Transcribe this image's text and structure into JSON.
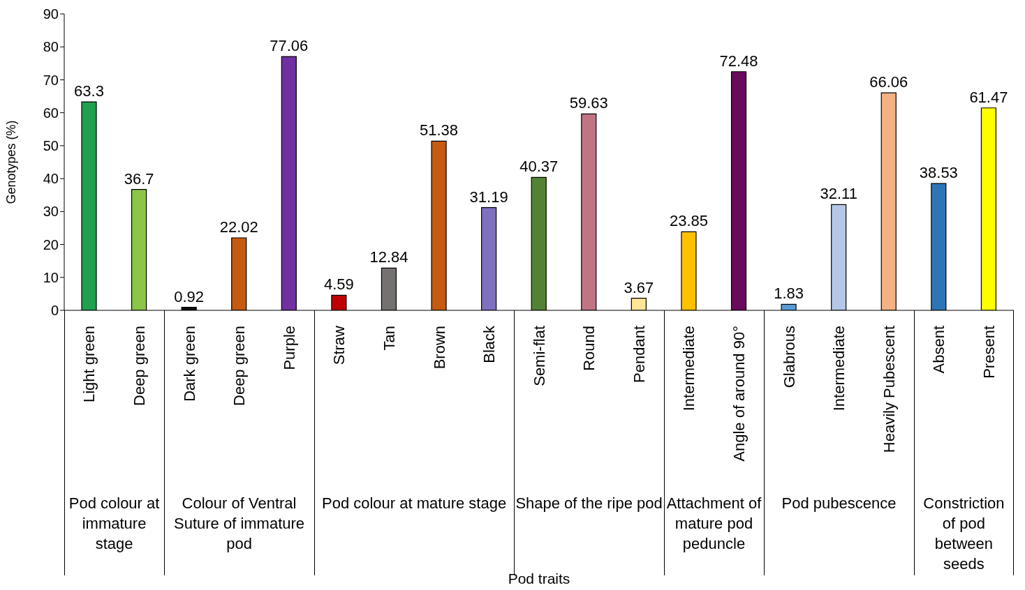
{
  "chart_data": {
    "type": "bar",
    "ylabel": "Genotypes (%)",
    "categories": [
      "Light green",
      "Deep green",
      "Dark  green",
      "Deep green",
      "Purple",
      "Straw",
      "Tan",
      "Brown",
      "Black",
      "Semi-flat",
      "Round",
      "Pendant",
      "Intermediate",
      "Angle of around 90°",
      "Glabrous",
      "Intermediate",
      "Heavily Pubescent",
      "Absent",
      "Present"
    ],
    "values": [
      63.3,
      36.7,
      0.92,
      22.02,
      77.06,
      4.59,
      12.84,
      51.38,
      31.19,
      40.37,
      59.63,
      3.67,
      23.85,
      72.48,
      1.83,
      32.11,
      66.06,
      38.53,
      61.47
    ],
    "colors": [
      "#1ea04c",
      "#8dc54a",
      "#111111",
      "#c55a11",
      "#7030a0",
      "#c00000",
      "#767171",
      "#c55a11",
      "#8070c0",
      "#548235",
      "#c07585",
      "#ffe699",
      "#ffc000",
      "#6a0a5a",
      "#5b9bd5",
      "#b4c7e7",
      "#f4b183",
      "#2e75b6",
      "#ffff00"
    ],
    "ylim": [
      0,
      90
    ],
    "yticks": [
      0,
      10,
      20,
      30,
      40,
      50,
      60,
      70,
      80,
      90
    ],
    "grid": false,
    "legend": false,
    "data_labels": true,
    "annotations": [
      "Pod colour at immature stage",
      "Colour of Ventral Suture of immature pod",
      "Pod colour at mature stage",
      "Shape of the ripe pod",
      "Attachment of mature pod peduncle",
      "Pod pubescence",
      "Constriction of pod between seeds",
      "Pod traits"
    ]
  }
}
